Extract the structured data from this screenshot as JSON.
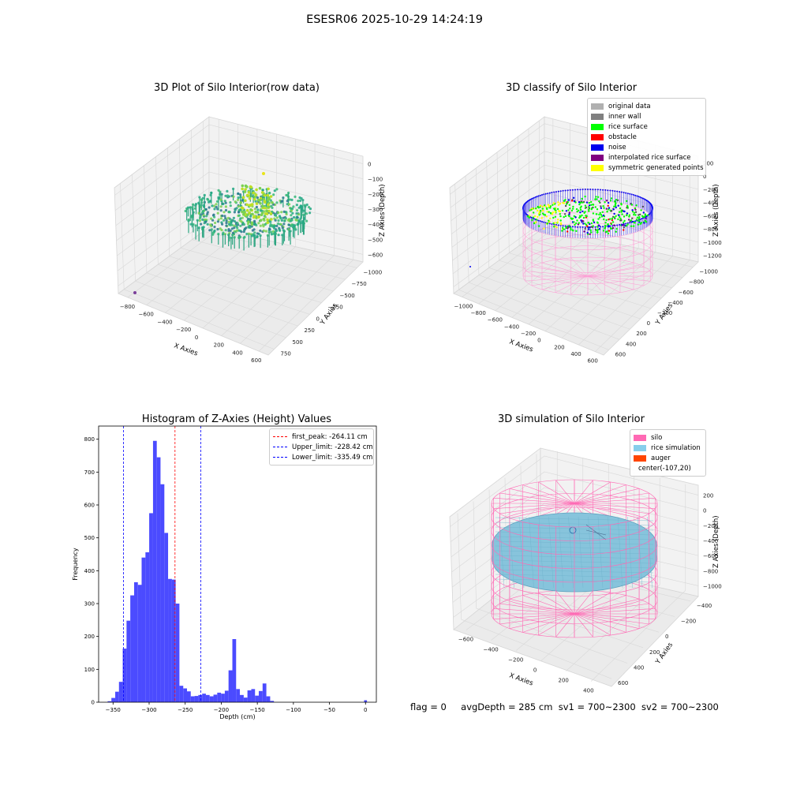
{
  "title": "ESESR06 2025-10-29 14:24:19",
  "panels": {
    "raw": {
      "title": "3D Plot of Silo Interior(row data)",
      "x_label": "X Axies",
      "y_label": "Y Axies",
      "z_label": "Z Axies (Depth)",
      "x_ticks": [
        "−800",
        "−600",
        "−400",
        "−200",
        "0",
        "200",
        "400",
        "600"
      ],
      "y_ticks": [
        "750",
        "500",
        "250",
        "0",
        "−250",
        "−500",
        "−750",
        "−1000"
      ],
      "z_ticks": [
        "0",
        "−100",
        "−200",
        "−300",
        "−400",
        "−500",
        "−600"
      ]
    },
    "classify": {
      "title": "3D classify of Silo Interior",
      "x_label": "X Axies",
      "y_label": "Y Axies",
      "z_label": "Z Axies (Depth)",
      "x_ticks": [
        "−1000",
        "−800",
        "−600",
        "−400",
        "−200",
        "0",
        "200",
        "400",
        "600"
      ],
      "y_ticks": [
        "600",
        "400",
        "200",
        "0",
        "−200",
        "−400",
        "−600",
        "−800",
        "−1000"
      ],
      "z_ticks": [
        "200",
        "0",
        "−200",
        "−400",
        "−600",
        "−800",
        "−1000",
        "−1200"
      ],
      "z_ticks_hidden_partial": [
        "00"
      ],
      "legend": [
        {
          "label": "original data",
          "color": "#b0b0b0"
        },
        {
          "label": "inner wall",
          "color": "#808080"
        },
        {
          "label": "rice surface",
          "color": "#00ff00"
        },
        {
          "label": "obstacle",
          "color": "#ff0000"
        },
        {
          "label": "noise",
          "color": "#0000ee"
        },
        {
          "label": "interpolated rice surface",
          "color": "#800080"
        },
        {
          "label": "symmetric generated points",
          "color": "#ffff00"
        }
      ]
    },
    "simulation": {
      "title": "3D simulation of Silo Interior",
      "x_label": "X Axies",
      "y_label": "Y Axies",
      "z_label": "Z Axies (Depth)",
      "x_ticks": [
        "−600",
        "−400",
        "−200",
        "0",
        "200",
        "400"
      ],
      "y_ticks": [
        "600",
        "400",
        "200",
        "0",
        "−200",
        "−400"
      ],
      "z_ticks": [
        "200",
        "0",
        "−200",
        "−400",
        "−600",
        "−800",
        "−1000"
      ],
      "legend": [
        {
          "label": "silo",
          "color": "#ff69b4"
        },
        {
          "label": "rice simulation",
          "color": "#87ceeb"
        },
        {
          "label": "auger",
          "color": "#ff4500"
        },
        {
          "label": "center(-107,20)",
          "color": ""
        }
      ]
    }
  },
  "status": {
    "flag": "flag = 0",
    "avg_depth": "avgDepth = 285 cm",
    "sv1": "sv1 = 700~2300",
    "sv2": "sv2 = 700~2300"
  },
  "chart_data": [
    {
      "type": "histogram",
      "title": "Histogram of Z-Axies (Height) Values",
      "xlabel": "Depth (cm)",
      "ylabel": "Frequency",
      "xlim": [
        -370,
        15
      ],
      "ylim": [
        0,
        840
      ],
      "x_ticks": [
        -350,
        -300,
        -250,
        -200,
        -150,
        -100,
        -50,
        0
      ],
      "y_ticks": [
        0,
        100,
        200,
        300,
        400,
        500,
        600,
        700,
        800
      ],
      "bar_color": "#4b4bff",
      "bins": [
        {
          "x0": -357.5,
          "x1": -352.3,
          "count": 3
        },
        {
          "x0": -352.3,
          "x1": -347.0,
          "count": 13
        },
        {
          "x0": -347.0,
          "x1": -341.8,
          "count": 32
        },
        {
          "x0": -341.8,
          "x1": -336.6,
          "count": 62
        },
        {
          "x0": -336.6,
          "x1": -331.3,
          "count": 163
        },
        {
          "x0": -331.3,
          "x1": -326.1,
          "count": 248
        },
        {
          "x0": -326.1,
          "x1": -320.8,
          "count": 325
        },
        {
          "x0": -320.8,
          "x1": -315.6,
          "count": 365
        },
        {
          "x0": -315.6,
          "x1": -310.4,
          "count": 357
        },
        {
          "x0": -310.4,
          "x1": -305.1,
          "count": 440
        },
        {
          "x0": -305.1,
          "x1": -299.9,
          "count": 456
        },
        {
          "x0": -299.9,
          "x1": -294.6,
          "count": 575
        },
        {
          "x0": -294.6,
          "x1": -289.4,
          "count": 795
        },
        {
          "x0": -289.4,
          "x1": -284.2,
          "count": 745
        },
        {
          "x0": -284.2,
          "x1": -278.9,
          "count": 663
        },
        {
          "x0": -278.9,
          "x1": -273.7,
          "count": 515
        },
        {
          "x0": -273.7,
          "x1": -268.4,
          "count": 375
        },
        {
          "x0": -268.4,
          "x1": -263.2,
          "count": 373
        },
        {
          "x0": -263.2,
          "x1": -258.0,
          "count": 300
        },
        {
          "x0": -258.0,
          "x1": -252.7,
          "count": 50
        },
        {
          "x0": -252.7,
          "x1": -247.5,
          "count": 42
        },
        {
          "x0": -247.5,
          "x1": -242.3,
          "count": 33
        },
        {
          "x0": -242.3,
          "x1": -237.0,
          "count": 18
        },
        {
          "x0": -237.0,
          "x1": -231.8,
          "count": 19
        },
        {
          "x0": -231.8,
          "x1": -226.5,
          "count": 22
        },
        {
          "x0": -226.5,
          "x1": -221.3,
          "count": 26
        },
        {
          "x0": -221.3,
          "x1": -216.1,
          "count": 22
        },
        {
          "x0": -216.1,
          "x1": -210.8,
          "count": 18
        },
        {
          "x0": -210.8,
          "x1": -205.6,
          "count": 23
        },
        {
          "x0": -205.6,
          "x1": -200.3,
          "count": 29
        },
        {
          "x0": -200.3,
          "x1": -195.1,
          "count": 26
        },
        {
          "x0": -195.1,
          "x1": -189.9,
          "count": 35
        },
        {
          "x0": -189.9,
          "x1": -184.6,
          "count": 97
        },
        {
          "x0": -184.6,
          "x1": -179.4,
          "count": 192
        },
        {
          "x0": -179.4,
          "x1": -174.2,
          "count": 40
        },
        {
          "x0": -174.2,
          "x1": -168.9,
          "count": 22
        },
        {
          "x0": -168.9,
          "x1": -163.7,
          "count": 14
        },
        {
          "x0": -163.7,
          "x1": -158.4,
          "count": 36
        },
        {
          "x0": -158.4,
          "x1": -153.2,
          "count": 40
        },
        {
          "x0": -153.2,
          "x1": -148.0,
          "count": 20
        },
        {
          "x0": -148.0,
          "x1": -142.7,
          "count": 34
        },
        {
          "x0": -142.7,
          "x1": -137.5,
          "count": 57
        },
        {
          "x0": -137.5,
          "x1": -132.2,
          "count": 18
        },
        {
          "x0": -132.2,
          "x1": -127.0,
          "count": 4
        },
        {
          "x0": -2.0,
          "x1": 2.0,
          "count": 6
        }
      ],
      "reference_lines": [
        {
          "label": "first_peak: -264.11 cm",
          "x": -264.11,
          "color": "#ff0000",
          "style": "dashed"
        },
        {
          "label": "Upper_limit: -228.42 cm",
          "x": -228.42,
          "color": "#0000ff",
          "style": "dashed"
        },
        {
          "label": "Lower_limit: -335.49 cm",
          "x": -335.49,
          "color": "#0000ff",
          "style": "dashed"
        }
      ],
      "legend_position": "upper right"
    }
  ]
}
